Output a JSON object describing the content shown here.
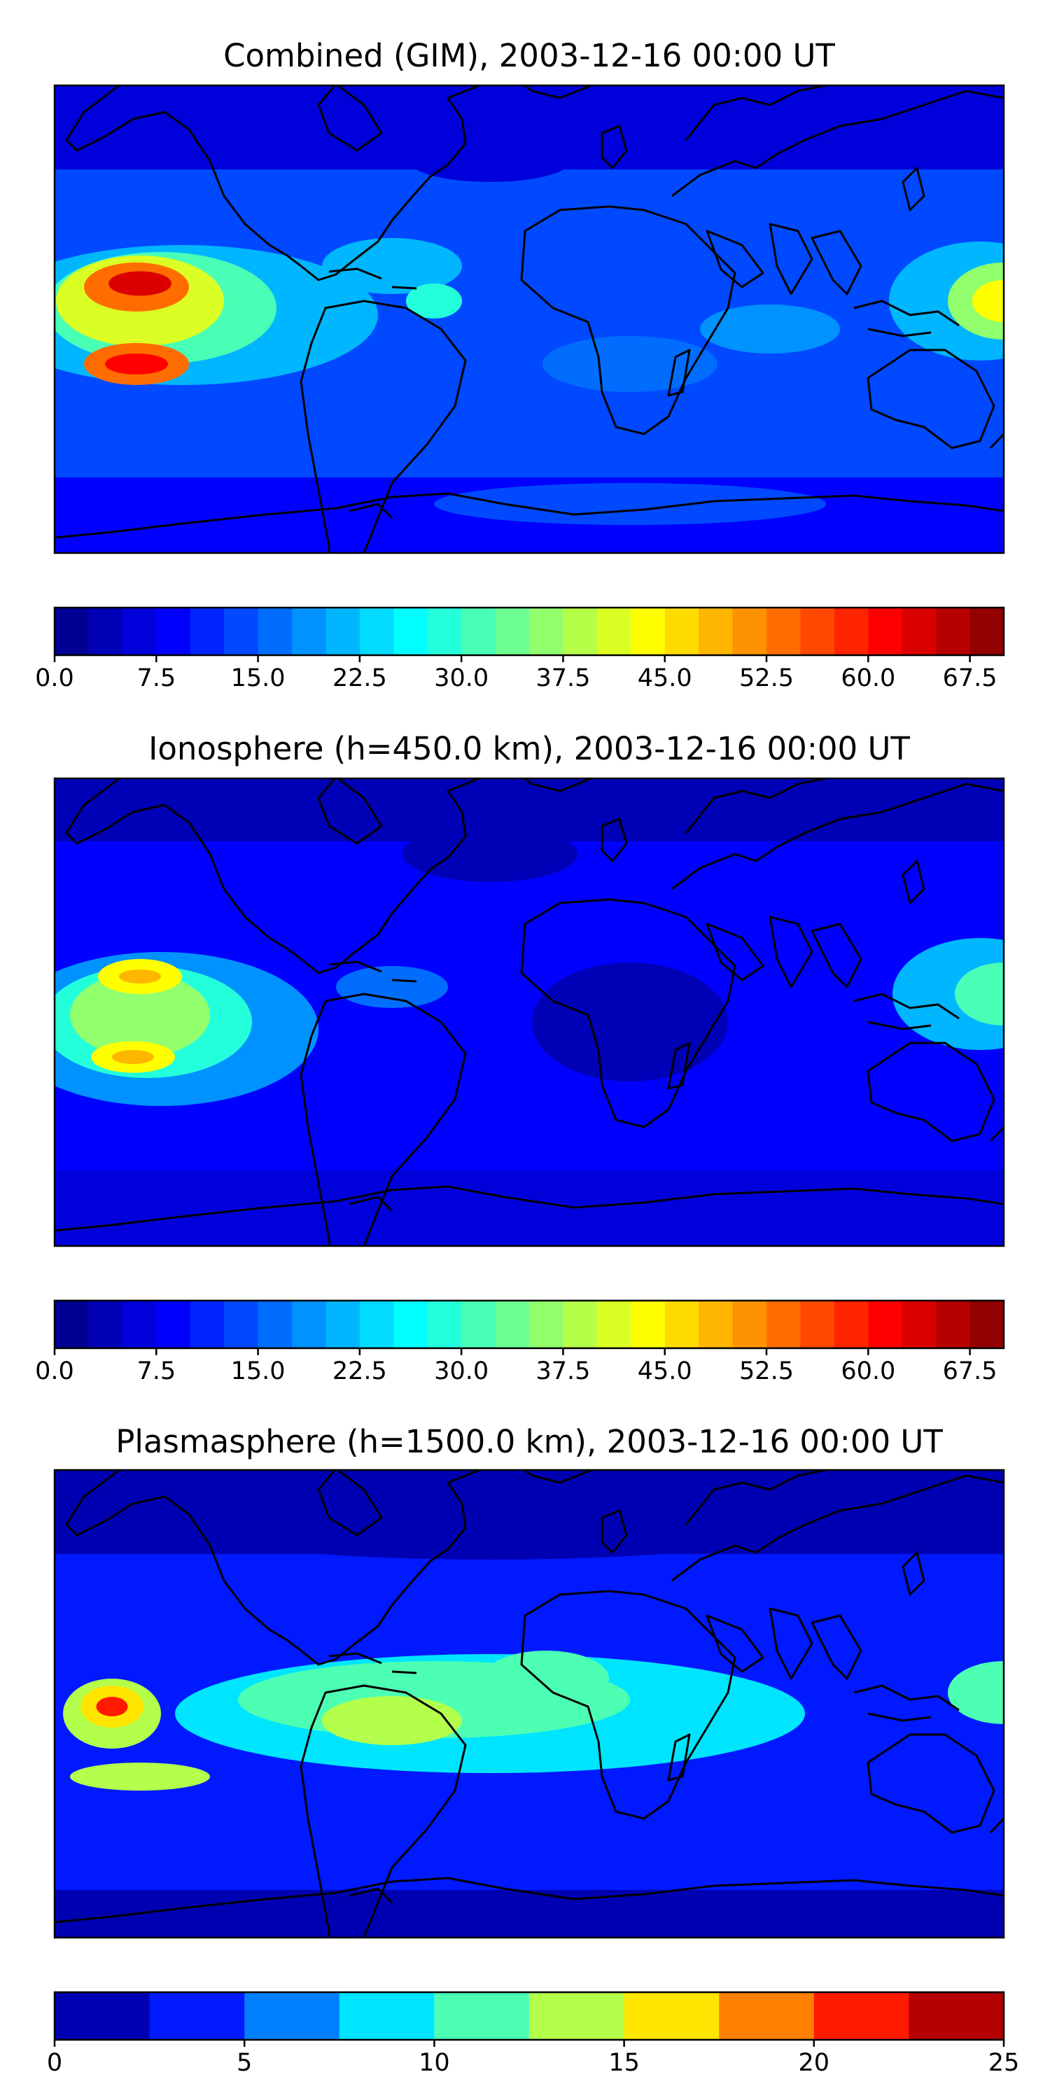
{
  "panels": [
    {
      "id": "combined",
      "title": "Combined (GIM), 2003-12-16 00:00 UT",
      "colorbar": {
        "vmin": 0,
        "vmax": 70,
        "levels": 28,
        "tick_labels": [
          "0.0",
          "7.5",
          "15.0",
          "22.5",
          "30.0",
          "37.5",
          "45.0",
          "52.5",
          "60.0",
          "67.5"
        ],
        "tick_values": [
          0,
          7.5,
          15,
          22.5,
          30,
          37.5,
          45,
          52.5,
          60,
          67.5
        ]
      }
    },
    {
      "id": "ionosphere",
      "title": "Ionosphere  (h=450.0 km), 2003-12-16 00:00 UT",
      "colorbar": {
        "vmin": 0,
        "vmax": 70,
        "levels": 28,
        "tick_labels": [
          "0.0",
          "7.5",
          "15.0",
          "22.5",
          "30.0",
          "37.5",
          "45.0",
          "52.5",
          "60.0",
          "67.5"
        ],
        "tick_values": [
          0,
          7.5,
          15,
          22.5,
          30,
          37.5,
          45,
          52.5,
          60,
          67.5
        ]
      }
    },
    {
      "id": "plasmasphere",
      "title": "Plasmasphere (h=1500.0 km), 2003-12-16 00:00 UT",
      "colorbar": {
        "vmin": 0,
        "vmax": 25,
        "levels": 10,
        "tick_labels": [
          "0",
          "5",
          "10",
          "15",
          "20",
          "25"
        ],
        "tick_values": [
          0,
          5,
          10,
          15,
          20,
          25
        ]
      }
    }
  ],
  "colormap": "jet",
  "colors": {
    "axis_frame": "#000000",
    "coastline": "#000000"
  }
}
